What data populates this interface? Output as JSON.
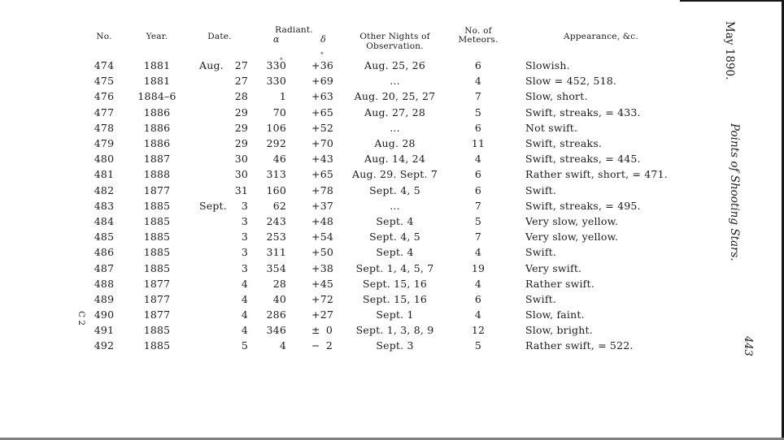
{
  "page": {
    "margin_right": {
      "journal_date": "May 1890.",
      "article_title": "Points of Shooting Stars.",
      "page_number": "443"
    },
    "margin_left": {
      "signature_mark": "C 2"
    }
  },
  "table": {
    "headers": {
      "no": "No.",
      "year": "Year.",
      "date": "Date.",
      "radiant": "Radiant.",
      "alpha": "α",
      "delta": "δ",
      "other_nights": "Other Nights of Observation.",
      "meteors_line1": "No. of",
      "meteors_line2": "Meteors.",
      "appearance": "Appearance, &c."
    },
    "rows": [
      {
        "no": "474",
        "year": "1881",
        "month": "Aug.",
        "day": "27",
        "alpha": "330",
        "dsign": "+",
        "dval": "36",
        "deg": true,
        "nights": "Aug. 25, 26",
        "meteors": "6",
        "appearance": "Slowish."
      },
      {
        "no": "475",
        "year": "1881",
        "month": "",
        "day": "27",
        "alpha": "330",
        "dsign": "+",
        "dval": "69",
        "nights": "...",
        "meteors": "4",
        "appearance": "Slow = 452, 518."
      },
      {
        "no": "476",
        "year": "1884–6",
        "month": "",
        "day": "28",
        "alpha": "1",
        "dsign": "+",
        "dval": "63",
        "nights": "Aug. 20, 25, 27",
        "meteors": "7",
        "appearance": "Slow, short."
      },
      {
        "no": "477",
        "year": "1886",
        "month": "",
        "day": "29",
        "alpha": "70",
        "dsign": "+",
        "dval": "65",
        "nights": "Aug. 27, 28",
        "meteors": "5",
        "appearance": "Swift, streaks, = 433."
      },
      {
        "no": "478",
        "year": "1886",
        "month": "",
        "day": "29",
        "alpha": "106",
        "dsign": "+",
        "dval": "52",
        "nights": "...",
        "meteors": "6",
        "appearance": "Not swift."
      },
      {
        "no": "479",
        "year": "1886",
        "month": "",
        "day": "29",
        "alpha": "292",
        "dsign": "+",
        "dval": "70",
        "nights": "Aug. 28",
        "meteors": "11",
        "appearance": "Swift, streaks."
      },
      {
        "no": "480",
        "year": "1887",
        "month": "",
        "day": "30",
        "alpha": "46",
        "dsign": "+",
        "dval": "43",
        "nights": "Aug. 14, 24",
        "meteors": "4",
        "appearance": "Swift, streaks, = 445."
      },
      {
        "no": "481",
        "year": "1888",
        "month": "",
        "day": "30",
        "alpha": "313",
        "dsign": "+",
        "dval": "65",
        "nights": "Aug. 29. Sept. 7",
        "meteors": "6",
        "appearance": "Rather swift, short, = 471."
      },
      {
        "no": "482",
        "year": "1877",
        "month": "",
        "day": "31",
        "alpha": "160",
        "dsign": "+",
        "dval": "78",
        "nights": "Sept. 4, 5",
        "meteors": "6",
        "appearance": "Swift."
      },
      {
        "no": "483",
        "year": "1885",
        "month": "Sept.",
        "day": "3",
        "alpha": "62",
        "dsign": "+",
        "dval": "37",
        "nights": "...",
        "meteors": "7",
        "appearance": "Swift, streaks, = 495."
      },
      {
        "no": "484",
        "year": "1885",
        "month": "",
        "day": "3",
        "alpha": "243",
        "dsign": "+",
        "dval": "48",
        "nights": "Sept. 4",
        "meteors": "5",
        "appearance": "Very slow, yellow."
      },
      {
        "no": "485",
        "year": "1885",
        "month": "",
        "day": "3",
        "alpha": "253",
        "dsign": "+",
        "dval": "54",
        "nights": "Sept. 4, 5",
        "meteors": "7",
        "appearance": "Very slow, yellow."
      },
      {
        "no": "486",
        "year": "1885",
        "month": "",
        "day": "3",
        "alpha": "311",
        "dsign": "+",
        "dval": "50",
        "nights": "Sept. 4",
        "meteors": "4",
        "appearance": "Swift."
      },
      {
        "no": "487",
        "year": "1885",
        "month": "",
        "day": "3",
        "alpha": "354",
        "dsign": "+",
        "dval": "38",
        "nights": "Sept. 1, 4, 5, 7",
        "meteors": "19",
        "appearance": "Very swift."
      },
      {
        "no": "488",
        "year": "1877",
        "month": "",
        "day": "4",
        "alpha": "28",
        "dsign": "+",
        "dval": "45",
        "nights": "Sept. 15, 16",
        "meteors": "4",
        "appearance": "Rather swift."
      },
      {
        "no": "489",
        "year": "1877",
        "month": "",
        "day": "4",
        "alpha": "40",
        "dsign": "+",
        "dval": "72",
        "nights": "Sept. 15, 16",
        "meteors": "6",
        "appearance": "Swift."
      },
      {
        "no": "490",
        "year": "1877",
        "month": "",
        "day": "4",
        "alpha": "286",
        "dsign": "+",
        "dval": "27",
        "nights": "Sept. 1",
        "meteors": "4",
        "appearance": "Slow, faint."
      },
      {
        "no": "491",
        "year": "1885",
        "month": "",
        "day": "4",
        "alpha": "346",
        "dsign": "±",
        "dval": "0",
        "nights": "Sept. 1, 3, 8, 9",
        "meteors": "12",
        "appearance": "Slow, bright."
      },
      {
        "no": "492",
        "year": "1885",
        "month": "",
        "day": "5",
        "alpha": "4",
        "dsign": "−",
        "dval": "2",
        "nights": "Sept. 3",
        "meteors": "5",
        "appearance": "Rather swift, = 522."
      }
    ]
  }
}
